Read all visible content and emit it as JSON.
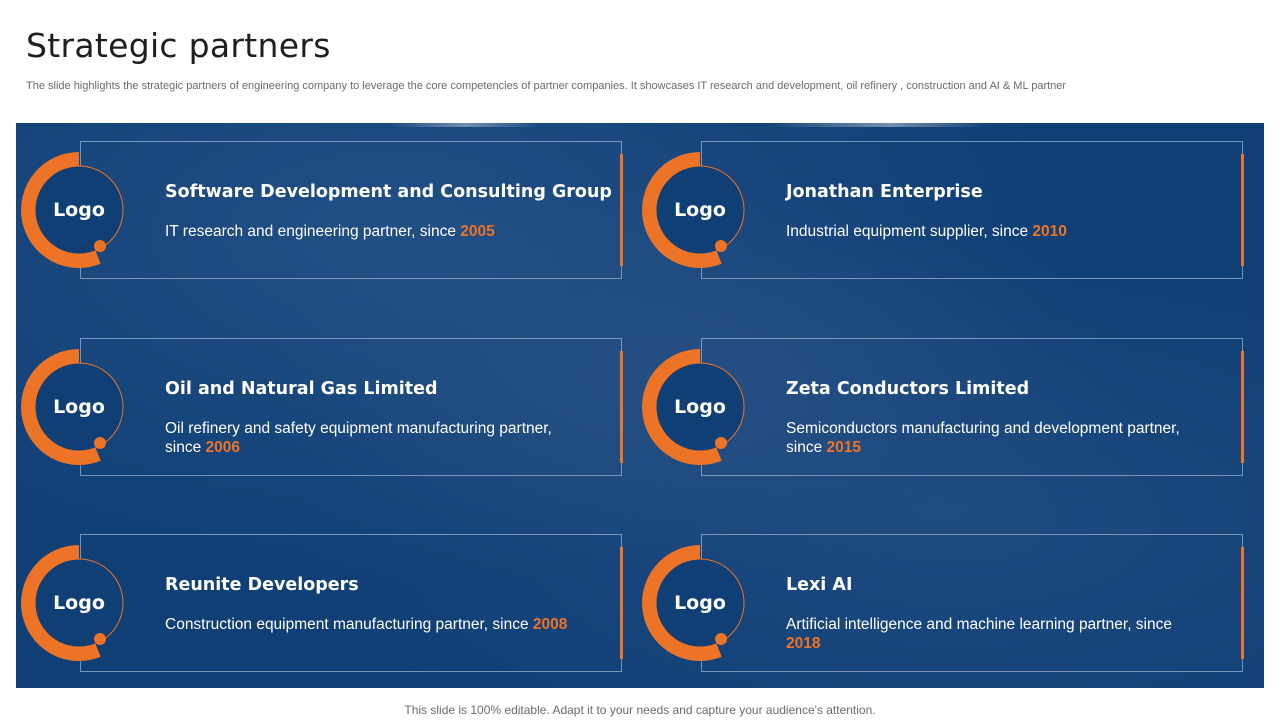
{
  "slide": {
    "title": "Strategic partners",
    "subtitle": "The slide highlights the strategic partners of engineering company to leverage the core competencies of partner companies. It showcases IT research and development, oil refinery ,  construction and AI & ML partner",
    "footer": "This slide is 100% editable. Adapt it to your needs and capture your audience's attention."
  },
  "colors": {
    "accent": "#ed7326",
    "panel": "#0f3f75"
  },
  "partners": [
    {
      "logo": "Logo",
      "name": "Software Development and Consulting Group",
      "desc": "IT  research and engineering partner, since ",
      "year": "2005"
    },
    {
      "logo": "Logo",
      "name": "Jonathan Enterprise",
      "desc": "Industrial  equipment supplier, since ",
      "year": "2010"
    },
    {
      "logo": "Logo",
      "name": "Oil and Natural Gas Limited",
      "desc": "Oil refinery and safety equipment manufacturing partner, since ",
      "year": "2006"
    },
    {
      "logo": "Logo",
      "name": "Zeta Conductors Limited",
      "desc": "Semiconductors manufacturing  and development partner, since ",
      "year": "2015"
    },
    {
      "logo": "Logo",
      "name": "Reunite Developers",
      "desc": "Construction  equipment manufacturing partner,  since ",
      "year": "2008"
    },
    {
      "logo": "Logo",
      "name": "Lexi AI",
      "desc": "Artificial intelligence and machine learning partner, since ",
      "year": "2018"
    }
  ]
}
